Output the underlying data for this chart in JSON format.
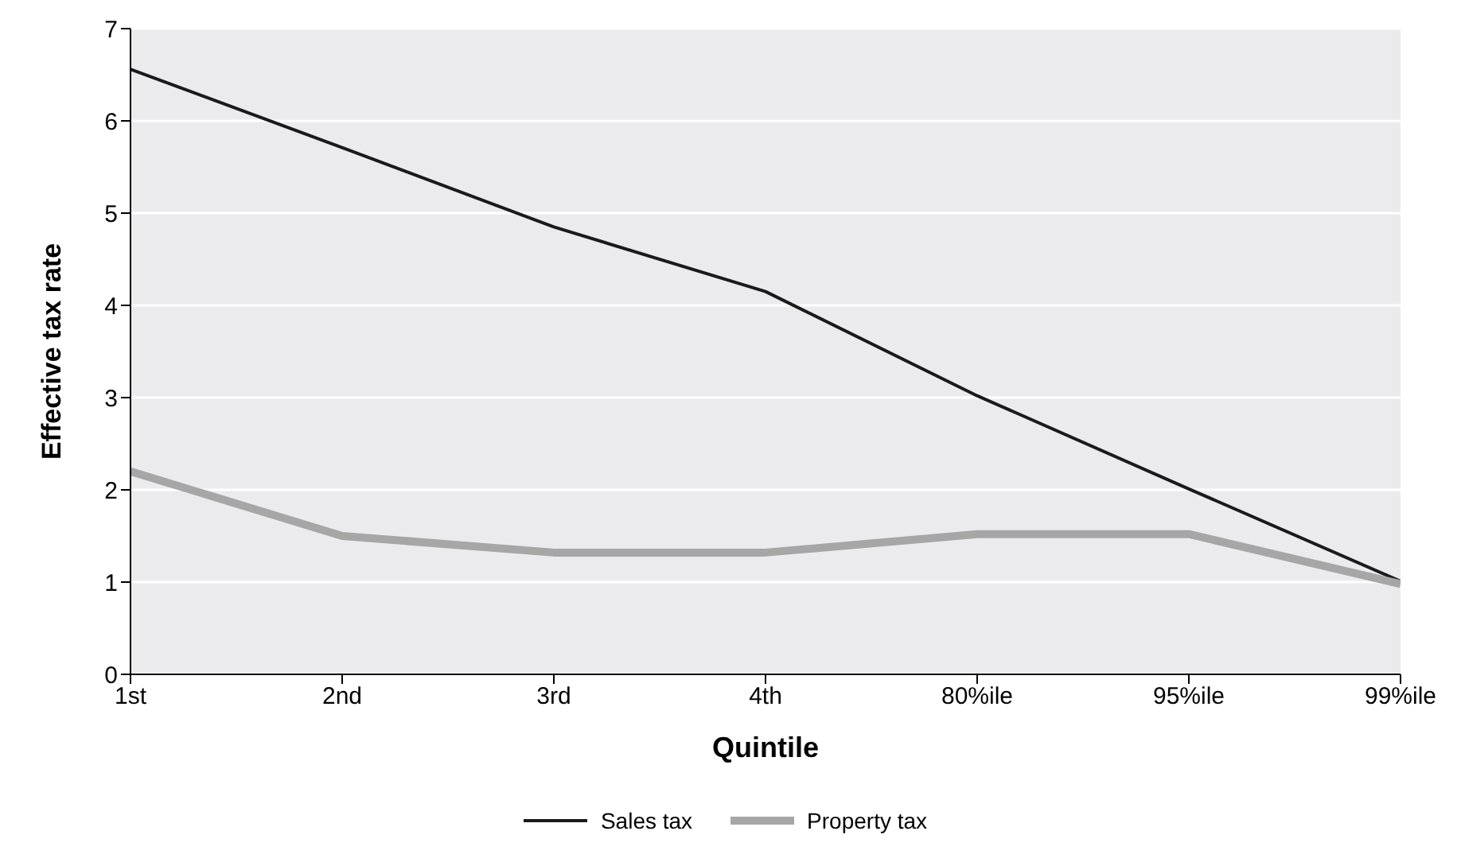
{
  "chart_data": {
    "type": "line",
    "xlabel": "Quintile",
    "ylabel": "Effective tax rate",
    "categories": [
      "1st",
      "2nd",
      "3rd",
      "4th",
      "80%ile",
      "95%ile",
      "99%ile"
    ],
    "series": [
      {
        "name": "Sales tax",
        "color": "#1a1a1a",
        "values": [
          6.56,
          5.71,
          4.85,
          4.15,
          3.02,
          2.01,
          1.01
        ]
      },
      {
        "name": "Property tax",
        "color": "#a6a6a6",
        "values": [
          2.2,
          1.5,
          1.32,
          1.32,
          1.52,
          1.52,
          0.98
        ]
      }
    ],
    "ylim": [
      0,
      7
    ],
    "yticks": [
      0,
      1,
      2,
      3,
      4,
      5,
      6,
      7
    ],
    "grid": "y",
    "legend": "bottom",
    "marker": "none"
  }
}
